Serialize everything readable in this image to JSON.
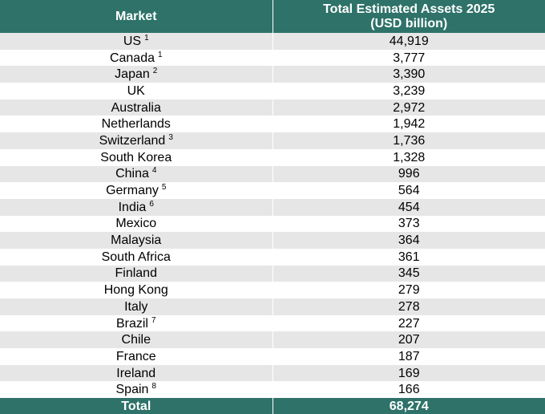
{
  "colors": {
    "header_bg": "#2e7269",
    "stripe": "#e6e6e6",
    "header_text": "#ffffff"
  },
  "chart_data": {
    "type": "table",
    "columns": [
      "Market",
      "Total Estimated Assets 2025",
      "(USD billion)"
    ],
    "rows": [
      {
        "market": "US",
        "note": "1",
        "value": "44,919"
      },
      {
        "market": "Canada",
        "note": "1",
        "value": "3,777"
      },
      {
        "market": "Japan",
        "note": "2",
        "value": "3,390"
      },
      {
        "market": "UK",
        "note": "",
        "value": "3,239"
      },
      {
        "market": "Australia",
        "note": "",
        "value": "2,972"
      },
      {
        "market": "Netherlands",
        "note": "",
        "value": "1,942"
      },
      {
        "market": "Switzerland",
        "note": "3",
        "value": "1,736"
      },
      {
        "market": "South Korea",
        "note": "",
        "value": "1,328"
      },
      {
        "market": "China",
        "note": "4",
        "value": "996"
      },
      {
        "market": "Germany",
        "note": "5",
        "value": "564"
      },
      {
        "market": "India",
        "note": "6",
        "value": "454"
      },
      {
        "market": "Mexico",
        "note": "",
        "value": "373"
      },
      {
        "market": "Malaysia",
        "note": "",
        "value": "364"
      },
      {
        "market": "South Africa",
        "note": "",
        "value": "361"
      },
      {
        "market": "Finland",
        "note": "",
        "value": "345"
      },
      {
        "market": "Hong Kong",
        "note": "",
        "value": "279"
      },
      {
        "market": "Italy",
        "note": "",
        "value": "278"
      },
      {
        "market": "Brazil",
        "note": "7",
        "value": "227"
      },
      {
        "market": "Chile",
        "note": "",
        "value": "207"
      },
      {
        "market": "France",
        "note": "",
        "value": "187"
      },
      {
        "market": "Ireland",
        "note": "",
        "value": "169"
      },
      {
        "market": "Spain",
        "note": "8",
        "value": "166"
      }
    ],
    "total": {
      "label": "Total",
      "value": "68,274"
    }
  }
}
